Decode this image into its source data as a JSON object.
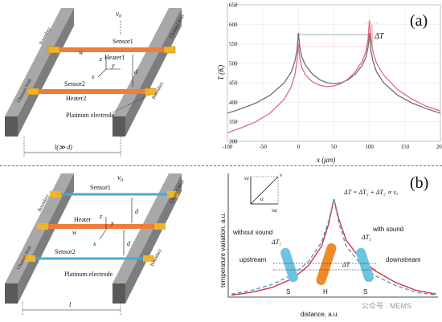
{
  "panel_a": {
    "schematic": {
      "flow_label": "v",
      "flow_subscript": "0",
      "boundary_label": "Boundary",
      "wall_label": "Channel Wall",
      "sensor1": "Sensor1",
      "heater1": "Heater1",
      "sensor2": "Sensor2",
      "heater2": "Heater2",
      "electrode": "Platinum electrode",
      "w": "w",
      "d": "d",
      "axis_z": "z",
      "axis_x": "x",
      "axis_y": "y",
      "length_label": "l(≫ d)"
    },
    "panel_label": "(a)",
    "chart_data": {
      "type": "line",
      "xlabel": "x (μm)",
      "ylabel": "T (K)",
      "xlim": [
        -100,
        200
      ],
      "ylim": [
        300,
        650
      ],
      "xticks": [
        "-100",
        "-50",
        "0",
        "50",
        "100",
        "150",
        "200"
      ],
      "yticks": [
        "300",
        "350",
        "400",
        "450",
        "500",
        "550",
        "600",
        "650"
      ],
      "annotation": "ΔT",
      "series": [
        {
          "color": "#6e6e6e",
          "x": [
            -100,
            -80,
            -60,
            -40,
            -20,
            -10,
            -5,
            -2,
            0,
            2,
            5,
            10,
            20,
            30,
            40,
            50,
            60,
            70,
            80,
            90,
            95,
            98,
            100,
            102,
            105,
            110,
            120,
            140,
            160,
            180,
            200
          ],
          "y": [
            372,
            384,
            398,
            418,
            450,
            478,
            505,
            535,
            578,
            540,
            515,
            495,
            472,
            458,
            450,
            448,
            450,
            458,
            472,
            495,
            515,
            540,
            578,
            535,
            505,
            478,
            450,
            418,
            398,
            384,
            372
          ]
        },
        {
          "color": "#e06a7a",
          "x": [
            -100,
            -80,
            -60,
            -40,
            -20,
            -10,
            -5,
            -2,
            0,
            2,
            5,
            10,
            20,
            30,
            40,
            50,
            60,
            70,
            80,
            90,
            95,
            98,
            100,
            102,
            105,
            110,
            120,
            140,
            160,
            180,
            200
          ],
          "y": [
            322,
            335,
            350,
            372,
            408,
            440,
            470,
            505,
            550,
            512,
            488,
            470,
            452,
            444,
            440,
            442,
            448,
            460,
            478,
            505,
            530,
            560,
            610,
            565,
            530,
            500,
            470,
            432,
            408,
            390,
            378
          ]
        }
      ]
    }
  },
  "panel_b": {
    "schematic": {
      "flow_label": "v",
      "flow_subscript": "0",
      "boundary_label": "Boundary",
      "wall_label": "Channel Wall",
      "sensor1": "Sensor1",
      "heater": "Heater",
      "sensor2": "Sensor2",
      "electrode": "Platinum electrode",
      "w": "w",
      "d": "d",
      "axis_z": "z",
      "axis_x": "x",
      "axis_y": "y",
      "length_label": "l"
    },
    "panel_label": "(b)",
    "chart_data": {
      "type": "line",
      "xlabel": "distance, a.u.",
      "ylabel": "temperature variation, a.u.",
      "equation": "ΔT = ΔT₁ + ΔT₂ ∝ vₐ",
      "without_sound": "without sound",
      "with_sound": "with sound",
      "upstream": "upstream",
      "downstream": "downstream",
      "dt1": "ΔT₁",
      "dt2": "ΔT₂",
      "dt": "ΔT",
      "sensor_left": "S",
      "heater_mid": "H",
      "sensor_right": "S",
      "vector_v": "v",
      "vector_vz": "vz",
      "vector_va": "va",
      "vector_alpha": "α",
      "series": [
        {
          "color": "#d9323a",
          "x": [
            -1,
            -0.8,
            -0.6,
            -0.4,
            -0.25,
            -0.12,
            -0.05,
            0,
            0.05,
            0.12,
            0.25,
            0.4,
            0.6,
            0.8,
            1
          ],
          "y": [
            0.02,
            0.05,
            0.1,
            0.19,
            0.32,
            0.52,
            0.75,
            1.0,
            0.79,
            0.58,
            0.4,
            0.27,
            0.15,
            0.07,
            0.03
          ]
        },
        {
          "color": "#4f9ec6",
          "x": [
            -1,
            -0.8,
            -0.6,
            -0.4,
            -0.25,
            -0.12,
            -0.05,
            0,
            0.05,
            0.12,
            0.25,
            0.4,
            0.6,
            0.8,
            1
          ],
          "y": [
            0.03,
            0.07,
            0.13,
            0.23,
            0.36,
            0.56,
            0.78,
            1.0,
            0.75,
            0.52,
            0.35,
            0.22,
            0.12,
            0.05,
            0.02
          ]
        }
      ]
    }
  },
  "watermark": "公众号 · MEMS"
}
